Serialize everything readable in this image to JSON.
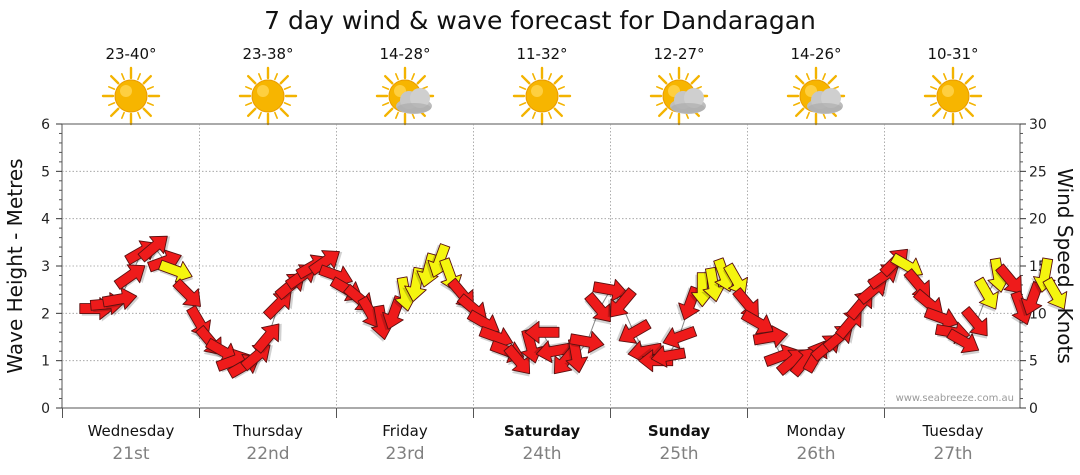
{
  "title": "7 day wind & wave forecast for Dandaragan",
  "credit": "www.seabreeze.com.au",
  "colors": {
    "strong": "#ee1b1b",
    "light": "#f5f50f",
    "outline": "#5a1010",
    "grid": "#9a9a9a"
  },
  "days": [
    {
      "name": "Wednesday",
      "date": "21st",
      "temp": "23-40°",
      "icon": "sun-icon",
      "bold": false
    },
    {
      "name": "Thursday",
      "date": "22nd",
      "temp": "23-38°",
      "icon": "sun-icon",
      "bold": false
    },
    {
      "name": "Friday",
      "date": "23rd",
      "temp": "14-28°",
      "icon": "sun-cloud-icon",
      "bold": false
    },
    {
      "name": "Saturday",
      "date": "24th",
      "temp": "11-32°",
      "icon": "sun-icon",
      "bold": true
    },
    {
      "name": "Sunday",
      "date": "25th",
      "temp": "12-27°",
      "icon": "sun-cloud-icon",
      "bold": true
    },
    {
      "name": "Monday",
      "date": "26th",
      "temp": "14-26°",
      "icon": "sun-cloud-icon",
      "bold": false
    },
    {
      "name": "Tuesday",
      "date": "27th",
      "temp": "10-31°",
      "icon": "sun-icon",
      "bold": false
    }
  ],
  "chart_data": {
    "type": "line",
    "title": "7 day wind & wave forecast for Dandaragan",
    "ylabel_left": "Wave Height - Metres",
    "ylabel_right": "Wind Speed - Knots",
    "ylim_left": [
      0,
      6
    ],
    "ylim_right": [
      0,
      30
    ],
    "yticks_left": [
      "0",
      "1",
      "2",
      "3",
      "4",
      "5",
      "6"
    ],
    "yticks_right": [
      "0",
      "5",
      "10",
      "15",
      "20",
      "25",
      "30"
    ],
    "grid": true,
    "legend": "none",
    "series": [
      {
        "name": "Wind Speed (knots) with direction arrows",
        "x_day": [
          -0.25,
          -0.17,
          -0.08,
          0.0,
          0.08,
          0.17,
          0.25,
          0.33,
          0.42,
          0.5,
          0.58,
          0.67,
          0.75,
          0.83,
          0.92,
          1.0,
          1.08,
          1.17,
          1.25,
          1.33,
          1.42,
          1.5,
          1.58,
          1.67,
          1.75,
          1.83,
          1.92,
          2.0,
          2.08,
          2.17,
          2.25,
          2.33,
          2.42,
          2.5,
          2.58,
          2.67,
          2.75,
          2.83,
          2.92,
          3.0,
          3.08,
          3.17,
          3.25,
          3.33,
          3.42,
          3.5,
          3.58,
          3.67,
          3.75,
          3.83,
          3.92,
          4.0,
          4.08,
          4.17,
          4.25,
          4.33,
          4.42,
          4.5,
          4.58,
          4.67,
          4.75,
          4.83,
          4.92,
          5.0,
          5.08,
          5.17,
          5.25,
          5.33,
          5.42,
          5.5,
          5.58,
          5.67,
          5.75,
          5.83,
          5.92,
          6.0,
          6.08,
          6.17,
          6.25,
          6.33,
          6.42,
          6.5,
          6.58,
          6.67,
          6.75
        ],
        "values": [
          10.5,
          11,
          11.5,
          14,
          16.5,
          17,
          15.5,
          14.5,
          12,
          9,
          7,
          6,
          5,
          4.5,
          5.5,
          7.5,
          11,
          13,
          14,
          15,
          15.5,
          14,
          12.5,
          11.5,
          10,
          9,
          10,
          12,
          13,
          14.5,
          15.5,
          14,
          12,
          10.5,
          9,
          7.5,
          6,
          5,
          6.5,
          8,
          6,
          5,
          5.5,
          7,
          10.5,
          12.5,
          11,
          8,
          6,
          5,
          5.5,
          7.5,
          11,
          12.5,
          13,
          14,
          13.5,
          11,
          9,
          7.5,
          5.5,
          5,
          5,
          5.5,
          6.5,
          7.5,
          9,
          11,
          12.5,
          14,
          15.5,
          15,
          13,
          11,
          9.5,
          8,
          7,
          9,
          12,
          14,
          13.5,
          10.5,
          11.5,
          14,
          12
        ],
        "direction_deg": [
          270,
          265,
          260,
          235,
          240,
          230,
          250,
          290,
          315,
          330,
          320,
          300,
          250,
          240,
          230,
          220,
          225,
          230,
          235,
          240,
          235,
          290,
          300,
          310,
          330,
          350,
          20,
          350,
          10,
          15,
          20,
          340,
          320,
          310,
          300,
          290,
          290,
          320,
          345,
          90,
          80,
          40,
          350,
          280,
          320,
          280,
          40,
          60,
          80,
          90,
          80,
          70,
          20,
          360,
          350,
          340,
          330,
          320,
          300,
          260,
          250,
          230,
          220,
          210,
          230,
          230,
          220,
          220,
          230,
          235,
          225,
          300,
          320,
          310,
          290,
          280,
          300,
          320,
          330,
          350,
          320,
          340,
          20,
          10,
          330
        ],
        "color_scale": "yellow for lighter winds (around 12-17 kt, light direction), red for stronger/offshore hours"
      }
    ]
  }
}
